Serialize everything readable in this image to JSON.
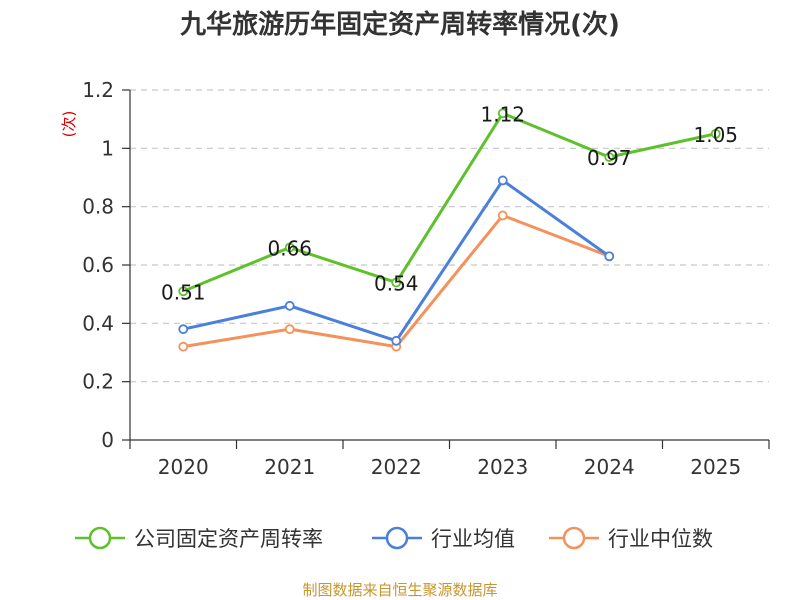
{
  "chart_data": {
    "type": "line",
    "title": "九华旅游历年固定资产周转率情况(次)",
    "ylabel": "(次)",
    "xlabel": "",
    "categories": [
      "2020",
      "2021",
      "2022",
      "2023",
      "2024",
      "2025"
    ],
    "yticks": [
      "0",
      "0.2",
      "0.4",
      "0.6",
      "0.8",
      "1",
      "1.2"
    ],
    "ylim": [
      0,
      1.2
    ],
    "grid": true,
    "legend_position": "bottom",
    "series": [
      {
        "name": "公司固定资产周转率",
        "color": "#5ec12b",
        "values": [
          0.51,
          0.66,
          0.54,
          1.12,
          0.97,
          1.05
        ],
        "labels": [
          "0.51",
          "0.66",
          "0.54",
          "1.12",
          "0.97",
          "1.05"
        ]
      },
      {
        "name": "行业均值",
        "color": "#4a7fdb",
        "values": [
          0.38,
          0.46,
          0.34,
          0.89,
          0.63,
          null
        ]
      },
      {
        "name": "行业中位数",
        "color": "#f5915a",
        "values": [
          0.32,
          0.38,
          0.32,
          0.77,
          0.63,
          null
        ]
      }
    ],
    "source": "制图数据来自恒生聚源数据库"
  }
}
